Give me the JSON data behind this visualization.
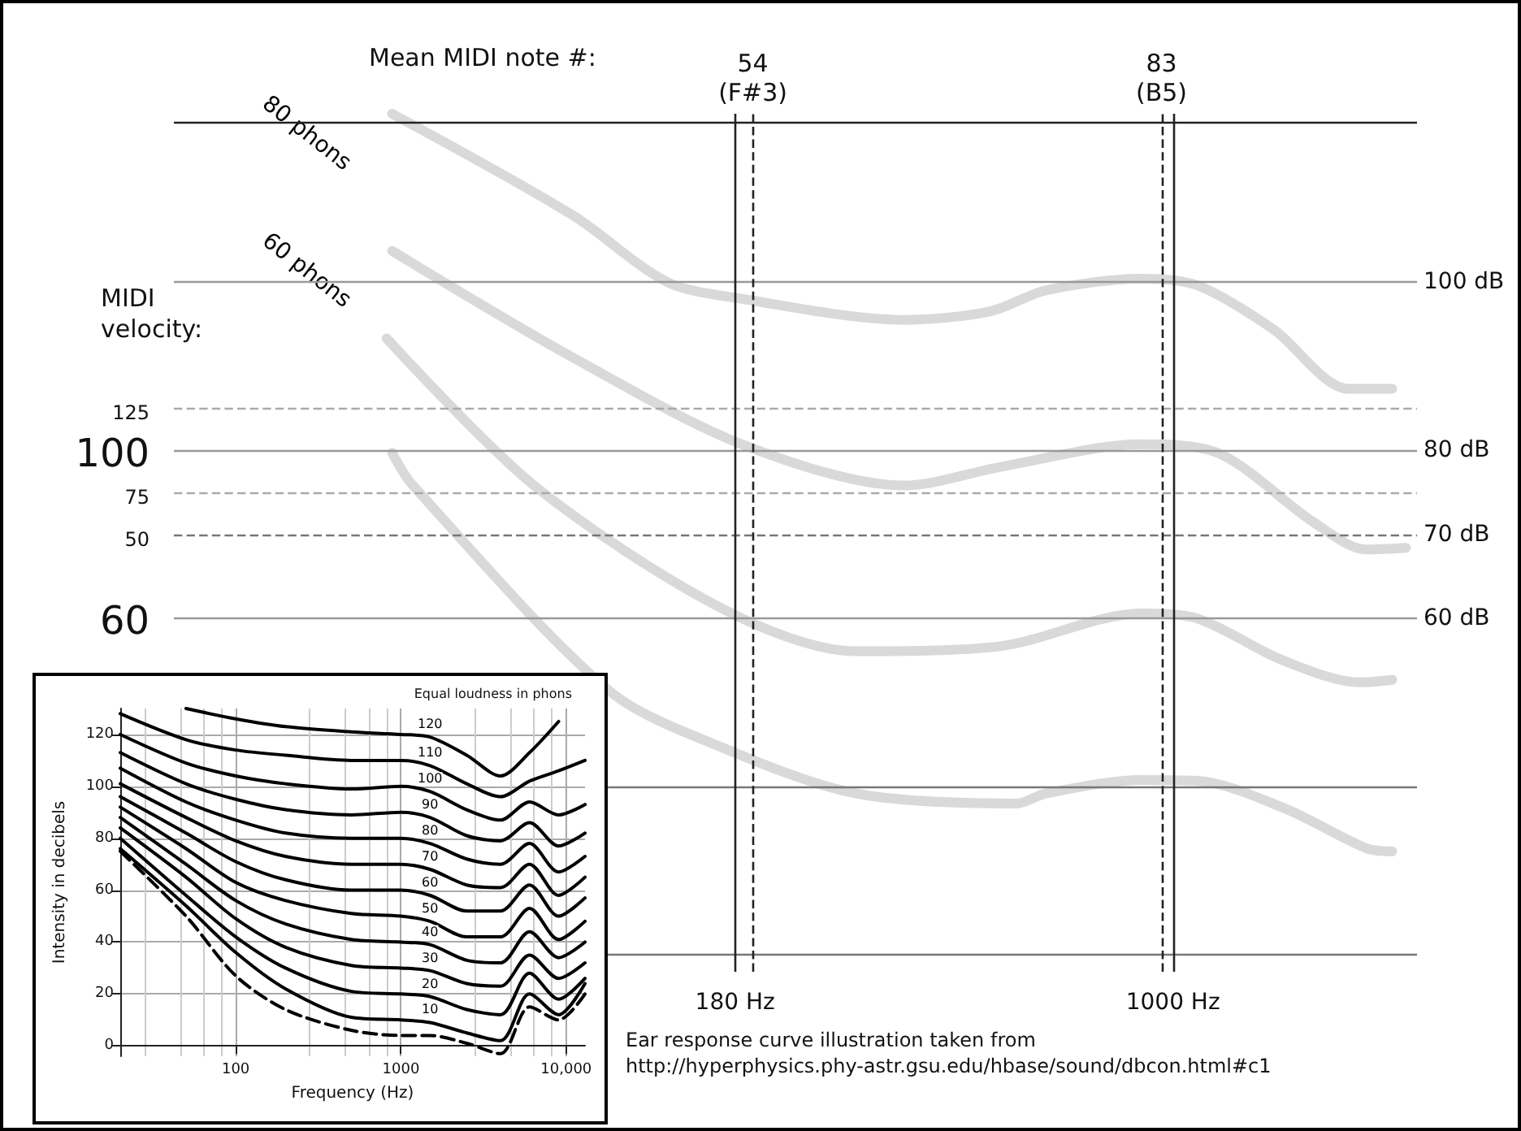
{
  "chart_data": [
    {
      "type": "line",
      "log": "x",
      "marker": "none",
      "xlim": [
        20,
        2600
      ],
      "xticks": [
        {
          "value": 180,
          "label": "180 Hz"
        },
        {
          "value": 1000,
          "label": "1000 Hz"
        }
      ],
      "ylim": [
        18,
        120
      ],
      "yticks": [
        {
          "value": 100,
          "label": "100 dB"
        },
        {
          "value": 80,
          "label": "80 dB"
        },
        {
          "value": 70,
          "label": "70 dB"
        },
        {
          "value": 60,
          "label": "60 dB"
        }
      ],
      "ref_lines": [
        {
          "axis": "y",
          "value": 119,
          "color": "#222222",
          "line_style": "solid"
        },
        {
          "axis": "y",
          "value": 100,
          "color": "#999999",
          "line_style": "solid"
        },
        {
          "axis": "y",
          "value": 85,
          "color": "#aaaaaa",
          "line_style": "dashed"
        },
        {
          "axis": "y",
          "value": 80,
          "color": "#999999",
          "line_style": "solid"
        },
        {
          "axis": "y",
          "value": 75,
          "color": "#aaaaaa",
          "line_style": "dashed"
        },
        {
          "axis": "y",
          "value": 70,
          "color": "#777777",
          "line_style": "dashed"
        },
        {
          "axis": "y",
          "value": 60,
          "color": "#999999",
          "line_style": "solid"
        },
        {
          "axis": "y",
          "value": 40,
          "color": "#777777",
          "line_style": "solid"
        },
        {
          "axis": "y",
          "value": 20,
          "color": "#777777",
          "line_style": "solid"
        },
        {
          "axis": "x",
          "value": 180,
          "color": "#222222",
          "line_style": "solid"
        },
        {
          "axis": "x",
          "value": 1000,
          "color": "#222222",
          "line_style": "solid"
        },
        {
          "axis": "x",
          "value": 193,
          "label": "54\n(F#3)",
          "color": "#222222",
          "line_style": "dashed"
        },
        {
          "axis": "x",
          "value": 956,
          "label": "83\n(B5)",
          "color": "#222222",
          "line_style": "dashed"
        }
      ],
      "series": [
        {
          "name": "80 phons",
          "color": "#d9d9d9",
          "x": [
            47,
            95,
            138,
            185,
            349,
            488,
            608,
            882,
            1100,
            1480,
            1990,
            2360
          ],
          "values": [
            120,
            108,
            100,
            98,
            95.5,
            96.5,
            99,
            100.4,
            99.6,
            94.4,
            87.3,
            87.3
          ]
        },
        {
          "name": "60 phons",
          "color": "#d9d9d9",
          "x": [
            47,
            95,
            185,
            349,
            508,
            882,
            1190,
            1730,
            2130,
            2490
          ],
          "values": [
            103.7,
            91.1,
            80.7,
            75.8,
            78,
            80.7,
            79.7,
            71.5,
            68.2,
            68.4
          ]
        },
        {
          "color": "#d9d9d9",
          "x": [
            46,
            82,
            172,
            289,
            508,
            882,
            1100,
            1540,
            2080,
            2360
          ],
          "values": [
            93.3,
            75.8,
            61.1,
            56.1,
            56.7,
            60.6,
            60,
            55,
            52.4,
            52.7
          ]
        },
        {
          "color": "#d9d9d9",
          "x": [
            47,
            51,
            110,
            172,
            289,
            542,
            608,
            882,
            1100,
            1540,
            2130,
            2360
          ],
          "values": [
            79.7,
            75.8,
            51.4,
            44.6,
            39.2,
            38,
            39.2,
            40.8,
            40.7,
            37.5,
            32.7,
            32.3
          ]
        }
      ],
      "annotations": [
        "Mean MIDI note #:",
        "MIDI velocity:",
        "Ear response curve illustration taken from",
        "http://hyperphysics.phy-astr.gsu.edu/hbase/sound/dbcon.html#c1",
        "125",
        "100",
        "75",
        "50",
        "60"
      ]
    },
    {
      "type": "line",
      "log": "x",
      "marker": "none",
      "grid": true,
      "xlabel": "Frequency (Hz)",
      "ylabel": "Intensity in decibels",
      "xlim": [
        20,
        13000
      ],
      "xticks": [
        100,
        1000,
        {
          "value": 10000,
          "label": "10,000"
        }
      ],
      "ylim": [
        -4,
        130
      ],
      "yticks": [
        0,
        20,
        40,
        60,
        80,
        100,
        120
      ],
      "annotations": [
        "Equal loudness in phons"
      ],
      "x": [
        20,
        50,
        100,
        200,
        500,
        1000,
        1500,
        2500,
        4000,
        6000,
        9000,
        13000
      ],
      "series": [
        {
          "name": "120",
          "color": "#000000",
          "values": [
            null,
            130,
            126,
            123,
            121,
            120,
            119,
            112,
            104,
            113,
            125,
            null
          ]
        },
        {
          "name": "110",
          "color": "#000000",
          "values": [
            128,
            118,
            114,
            112,
            110,
            110,
            108,
            101,
            96,
            102,
            106,
            110
          ]
        },
        {
          "name": "100",
          "color": "#000000",
          "values": [
            120,
            109,
            104,
            101,
            99,
            100,
            98,
            91,
            87,
            94,
            89,
            93
          ]
        },
        {
          "name": "90",
          "color": "#000000",
          "values": [
            113,
            101,
            95,
            91,
            89,
            90,
            88,
            81,
            79,
            86,
            77,
            82
          ]
        },
        {
          "name": "80",
          "color": "#000000",
          "values": [
            107,
            94,
            87,
            82,
            80,
            80,
            78,
            72,
            70,
            78,
            67,
            73
          ]
        },
        {
          "name": "70",
          "color": "#000000",
          "values": [
            101,
            88,
            79,
            73,
            70,
            70,
            68,
            62,
            61,
            70,
            58,
            65
          ]
        },
        {
          "name": "60",
          "color": "#000000",
          "values": [
            96,
            82,
            71,
            64,
            60,
            60,
            58,
            52,
            52,
            62,
            50,
            57
          ]
        },
        {
          "name": "50",
          "color": "#000000",
          "values": [
            92,
            76,
            63,
            56,
            51,
            50,
            48,
            42,
            42,
            53,
            41,
            48
          ]
        },
        {
          "name": "40",
          "color": "#000000",
          "values": [
            88,
            70,
            56,
            47,
            41,
            40,
            39,
            33,
            32,
            44,
            34,
            40
          ]
        },
        {
          "name": "30",
          "color": "#000000",
          "values": [
            84,
            65,
            49,
            38,
            31,
            30,
            29,
            24,
            23,
            35,
            26,
            32
          ]
        },
        {
          "name": "20",
          "color": "#000000",
          "values": [
            80,
            58,
            42,
            30,
            21,
            20,
            19,
            14,
            12,
            28,
            18,
            26
          ]
        },
        {
          "name": "10",
          "color": "#000000",
          "values": [
            76,
            54,
            36,
            22,
            11,
            10,
            9,
            5,
            2,
            20,
            12,
            24
          ]
        },
        {
          "color": "#000000",
          "line_style": "dashed",
          "values": [
            75,
            50,
            27,
            14,
            6,
            4,
            4,
            1,
            -3,
            15,
            10,
            20
          ]
        }
      ]
    }
  ]
}
